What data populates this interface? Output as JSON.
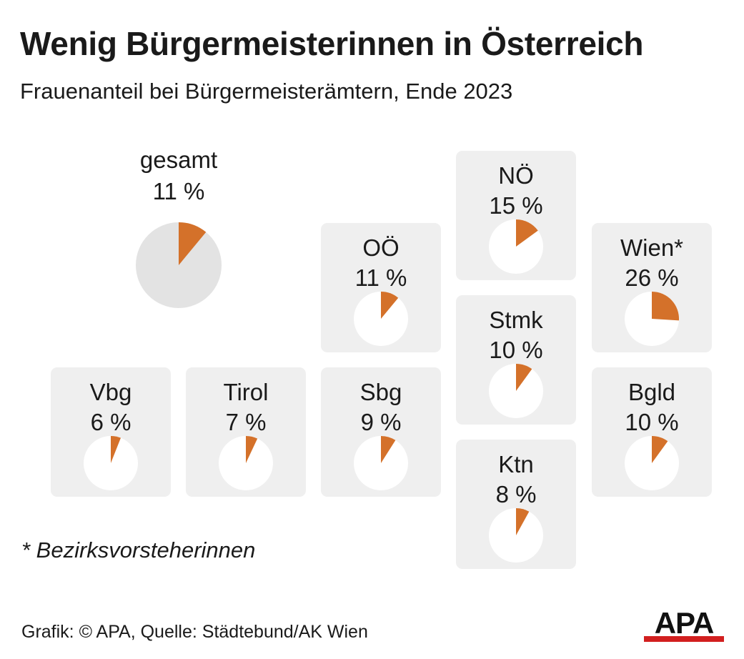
{
  "title": "Wenig Bürgermeisterinnen in Österreich",
  "subtitle": "Frauenanteil bei Bürgermeisterämtern, Ende 2023",
  "footnote": "* Bezirksvorsteherinnen",
  "source": "Grafik: © APA, Quelle: Städtebund/AK Wien",
  "logo_text": "APA",
  "colors": {
    "accent": "#d4712a",
    "overall_background": "#e3e3e3",
    "tile_background": "#efefef",
    "pie_background": "#ffffff",
    "logo_bar": "#d21f1f"
  },
  "chart_data": {
    "type": "pie",
    "title": "Wenig Bürgermeisterinnen in Österreich",
    "subtitle": "Frauenanteil bei Bürgermeisterämtern, Ende 2023",
    "unit": "%",
    "overall": {
      "name": "gesamt",
      "value": 11,
      "label": "11 %"
    },
    "regions": [
      {
        "name": "NÖ",
        "value": 15,
        "label": "15 %"
      },
      {
        "name": "OÖ",
        "value": 11,
        "label": "11 %"
      },
      {
        "name": "Wien*",
        "value": 26,
        "label": "26 %"
      },
      {
        "name": "Stmk",
        "value": 10,
        "label": "10 %"
      },
      {
        "name": "Vbg",
        "value": 6,
        "label": "6 %"
      },
      {
        "name": "Tirol",
        "value": 7,
        "label": "7 %"
      },
      {
        "name": "Sbg",
        "value": 9,
        "label": "9 %"
      },
      {
        "name": "Bgld",
        "value": 10,
        "label": "10 %"
      },
      {
        "name": "Ktn",
        "value": 8,
        "label": "8 %"
      }
    ]
  }
}
